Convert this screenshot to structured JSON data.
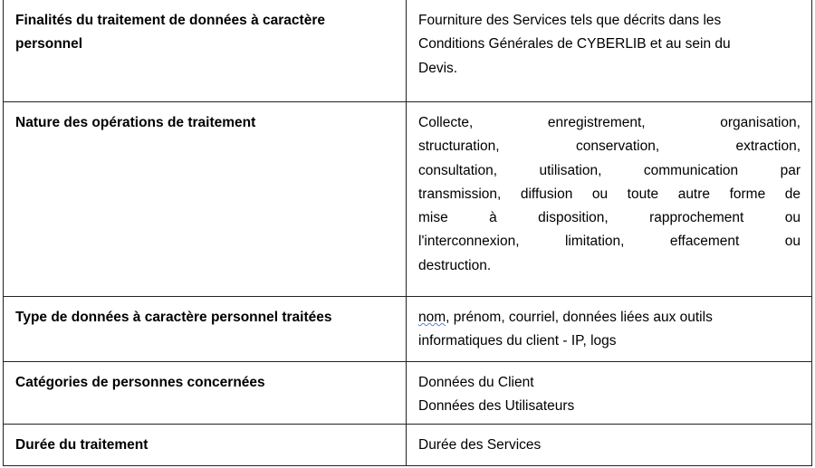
{
  "rows": [
    {
      "label": "Finalités du traitement de données à caractère personnel",
      "label_lines": [
        "Finalités du traitement de données à caractère",
        "personnel"
      ],
      "value_lines": [
        "Fourniture des Services tels que décrits dans les",
        "Conditions Générales de CYBERLIB et au sein du",
        "Devis."
      ]
    },
    {
      "label": "Nature des opérations de traitement",
      "value_lines": [
        "Collecte, enregistrement, organisation,",
        "structuration, conservation, extraction,",
        "consultation, utilisation, communication par",
        "transmission, diffusion ou toute autre forme de",
        "mise à disposition, rapprochement ou",
        "l'interconnexion, limitation, effacement ou",
        "destruction."
      ]
    },
    {
      "label": "Type de données à caractère personnel traitées",
      "value_first_word": "nom",
      "value_lines": [
        ", prénom, courriel, données liées aux outils",
        "informatiques du client - IP, logs"
      ]
    },
    {
      "label": "Catégories de personnes concernées",
      "value_lines": [
        "Données du Client",
        "Données des Utilisateurs"
      ]
    },
    {
      "label": "Durée du traitement",
      "value_lines": [
        "Durée des Services"
      ]
    }
  ]
}
